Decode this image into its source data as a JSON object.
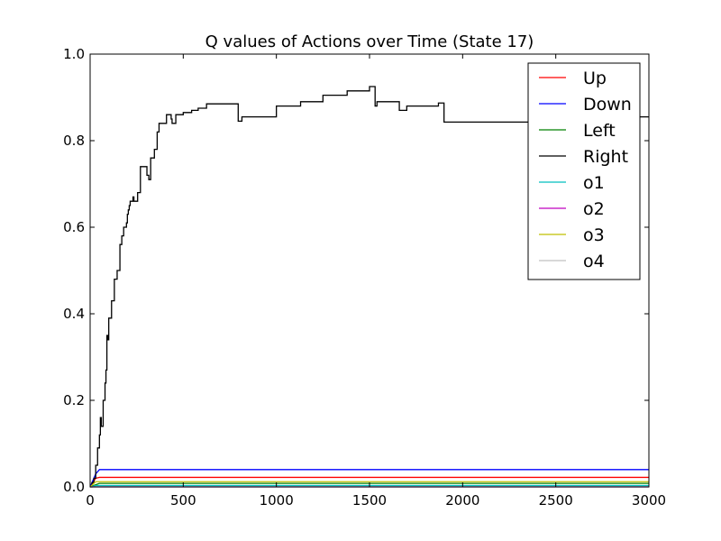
{
  "chart_data": {
    "type": "line",
    "title": "Q values of Actions over Time (State 17)",
    "xlabel": "",
    "ylabel": "",
    "xlim": [
      0,
      3000
    ],
    "ylim": [
      0.0,
      1.0
    ],
    "xticks": [
      0,
      500,
      1000,
      1500,
      2000,
      2500,
      3000
    ],
    "xtick_labels": [
      "0",
      "500",
      "1000",
      "1500",
      "2000",
      "2500",
      "3000"
    ],
    "yticks": [
      0.0,
      0.2,
      0.4,
      0.6,
      0.8,
      1.0
    ],
    "ytick_labels": [
      "0.0",
      "0.2",
      "0.4",
      "0.6",
      "0.8",
      "1.0"
    ],
    "grid": false,
    "legend_position": "top-right",
    "series": [
      {
        "name": "Up",
        "color": "#ff0000",
        "step": false,
        "points": [
          [
            0,
            0.0
          ],
          [
            15,
            0.01
          ],
          [
            30,
            0.02
          ],
          [
            50,
            0.022
          ],
          [
            3000,
            0.022
          ]
        ]
      },
      {
        "name": "Down",
        "color": "#0000ff",
        "step": false,
        "points": [
          [
            0,
            0.0
          ],
          [
            15,
            0.015
          ],
          [
            30,
            0.03
          ],
          [
            50,
            0.04
          ],
          [
            3000,
            0.04
          ]
        ]
      },
      {
        "name": "Left",
        "color": "#008000",
        "step": false,
        "points": [
          [
            0,
            0.0
          ],
          [
            30,
            0.005
          ],
          [
            50,
            0.008
          ],
          [
            3000,
            0.008
          ]
        ]
      },
      {
        "name": "Right",
        "color": "#000000",
        "step": true,
        "points": [
          [
            0,
            0.0
          ],
          [
            10,
            0.01
          ],
          [
            20,
            0.02
          ],
          [
            30,
            0.05
          ],
          [
            40,
            0.09
          ],
          [
            50,
            0.12
          ],
          [
            55,
            0.16
          ],
          [
            60,
            0.14
          ],
          [
            70,
            0.2
          ],
          [
            80,
            0.24
          ],
          [
            85,
            0.27
          ],
          [
            90,
            0.35
          ],
          [
            95,
            0.34
          ],
          [
            100,
            0.39
          ],
          [
            110,
            0.39
          ],
          [
            115,
            0.43
          ],
          [
            130,
            0.48
          ],
          [
            145,
            0.5
          ],
          [
            160,
            0.56
          ],
          [
            170,
            0.58
          ],
          [
            180,
            0.6
          ],
          [
            195,
            0.61
          ],
          [
            200,
            0.63
          ],
          [
            205,
            0.64
          ],
          [
            210,
            0.65
          ],
          [
            215,
            0.66
          ],
          [
            220,
            0.66
          ],
          [
            230,
            0.67
          ],
          [
            235,
            0.66
          ],
          [
            245,
            0.66
          ],
          [
            255,
            0.68
          ],
          [
            270,
            0.74
          ],
          [
            305,
            0.72
          ],
          [
            315,
            0.71
          ],
          [
            325,
            0.76
          ],
          [
            345,
            0.78
          ],
          [
            360,
            0.82
          ],
          [
            370,
            0.84
          ],
          [
            395,
            0.84
          ],
          [
            410,
            0.86
          ],
          [
            435,
            0.85
          ],
          [
            440,
            0.84
          ],
          [
            460,
            0.86
          ],
          [
            500,
            0.865
          ],
          [
            545,
            0.87
          ],
          [
            580,
            0.875
          ],
          [
            625,
            0.885
          ],
          [
            795,
            0.845
          ],
          [
            815,
            0.855
          ],
          [
            1000,
            0.88
          ],
          [
            1130,
            0.89
          ],
          [
            1250,
            0.905
          ],
          [
            1380,
            0.915
          ],
          [
            1500,
            0.925
          ],
          [
            1530,
            0.88
          ],
          [
            1540,
            0.89
          ],
          [
            1660,
            0.87
          ],
          [
            1700,
            0.88
          ],
          [
            1870,
            0.887
          ],
          [
            1900,
            0.843
          ],
          [
            2940,
            0.855
          ],
          [
            3000,
            0.855
          ]
        ]
      },
      {
        "name": "o1",
        "color": "#00bfbf",
        "step": false,
        "points": [
          [
            0,
            0.0
          ],
          [
            30,
            0.003
          ],
          [
            3000,
            0.003
          ]
        ]
      },
      {
        "name": "o2",
        "color": "#bf00bf",
        "step": false,
        "points": [
          [
            0,
            0.0
          ],
          [
            3000,
            0.0
          ]
        ]
      },
      {
        "name": "o3",
        "color": "#bfbf00",
        "step": false,
        "points": [
          [
            0,
            0.0
          ],
          [
            30,
            0.012
          ],
          [
            50,
            0.012
          ],
          [
            3000,
            0.012
          ]
        ]
      },
      {
        "name": "o4",
        "color": "#c0c0c0",
        "step": false,
        "points": [
          [
            0,
            0.0
          ],
          [
            3000,
            0.0
          ]
        ]
      }
    ]
  }
}
